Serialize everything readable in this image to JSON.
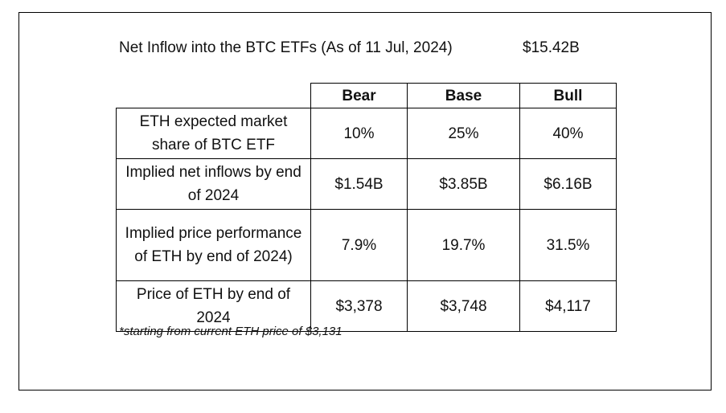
{
  "headline": {
    "text": "Net Inflow into the BTC ETFs (As of 11 Jul, 2024)",
    "value": "$15.42B"
  },
  "table": {
    "columns": [
      "Bear",
      "Base",
      "Bull"
    ],
    "rows": [
      {
        "label": "ETH expected market share of BTC ETF",
        "values": [
          "10%",
          "25%",
          "40%"
        ]
      },
      {
        "label": "Implied net inflows by end of 2024",
        "values": [
          "$1.54B",
          "$3.85B",
          "$6.16B"
        ]
      },
      {
        "label": "Implied price performance of ETH by end of 2024)",
        "values": [
          "7.9%",
          "19.7%",
          "31.5%"
        ]
      },
      {
        "label": "Price of ETH by end of 2024",
        "values": [
          "$3,378",
          "$3,748",
          "$4,117"
        ]
      }
    ]
  },
  "footnote": "*starting from current ETH price of $3,131"
}
